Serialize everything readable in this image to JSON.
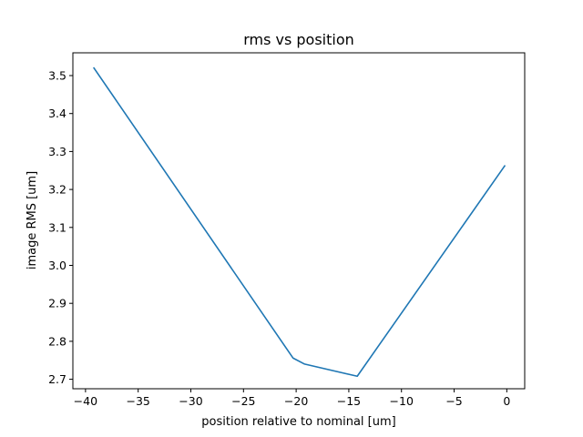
{
  "chart_data": {
    "type": "line",
    "title": "rms vs position",
    "xlabel": "position relative to nominal [um]",
    "ylabel": "image RMS [um]",
    "xlim": [
      -41.2,
      1.7
    ],
    "ylim": [
      2.675,
      3.56
    ],
    "xticks": [
      -40,
      -35,
      -30,
      -25,
      -20,
      -15,
      -10,
      -5,
      0
    ],
    "xtick_labels": [
      "−40",
      "−35",
      "−30",
      "−25",
      "−20",
      "−15",
      "−10",
      "−5",
      "0"
    ],
    "yticks": [
      2.7,
      2.8,
      2.9,
      3.0,
      3.1,
      3.2,
      3.3,
      3.4,
      3.5
    ],
    "ytick_labels": [
      "2.7",
      "2.8",
      "2.9",
      "3.0",
      "3.1",
      "3.2",
      "3.3",
      "3.4",
      "3.5"
    ],
    "grid": false,
    "series": [
      {
        "color": "#1f77b4",
        "x": [
          -39.2,
          -20.3,
          -19.2,
          -14.2,
          -0.2
        ],
        "y": [
          3.52,
          2.756,
          2.74,
          2.708,
          3.262
        ]
      }
    ]
  }
}
